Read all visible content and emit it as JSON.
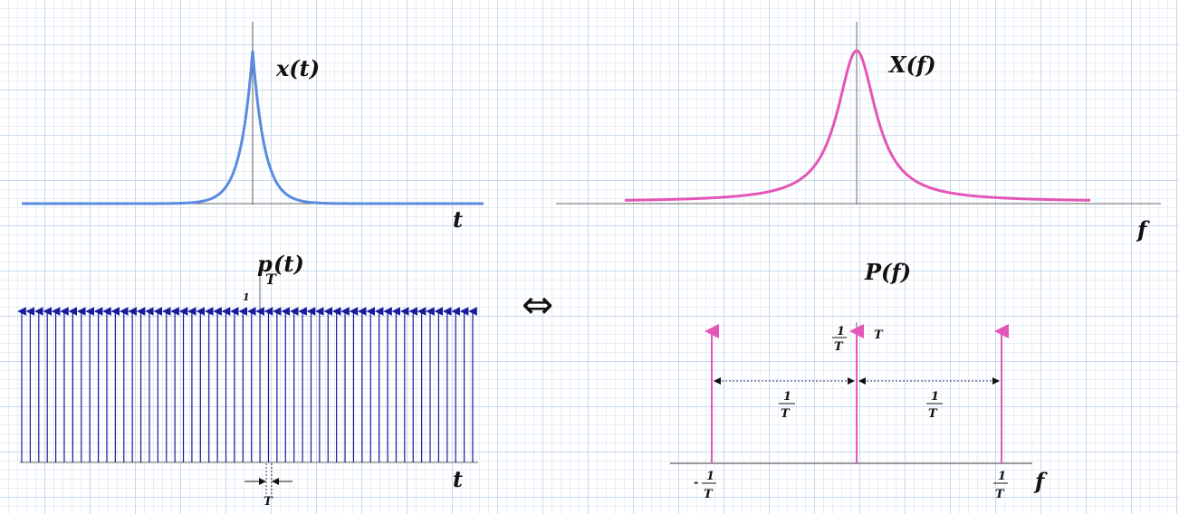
{
  "colors": {
    "signal": "#5b8be0",
    "spectrum": "#e455b8",
    "comb": "#1a1a9c",
    "axis": "#666666",
    "dotted": "#2a2a7a"
  },
  "top_left": {
    "label": "x(t)",
    "axis_label": "t"
  },
  "top_right": {
    "label": "X(f)",
    "axis_label": "f"
  },
  "bottom_left": {
    "label_main": "p",
    "label_sub": "T",
    "label_arg": "(t)",
    "height_label": "1",
    "axis_label": "t",
    "spacing_label": "T",
    "impulse_count": 54
  },
  "bottom_right": {
    "label": "P(f)",
    "axis_label": "f",
    "center_height_num": "1",
    "center_height_den": "T",
    "center_tag": "T",
    "left_spacing_num": "1",
    "left_spacing_den": "T",
    "right_spacing_num": "1",
    "right_spacing_den": "T",
    "neg_tick_sign": "-",
    "neg_tick_num": "1",
    "neg_tick_den": "T",
    "pos_tick_num": "1",
    "pos_tick_den": "T"
  },
  "equivalence_symbol": "⇔"
}
